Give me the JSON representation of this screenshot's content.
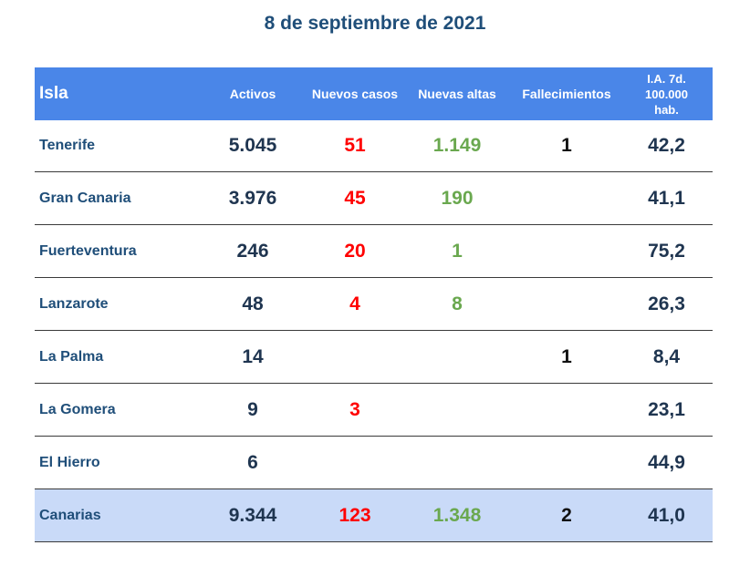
{
  "title": "8 de septiembre de 2021",
  "colors": {
    "header_bg": "#4a86e8",
    "total_row_bg": "#c9daf8",
    "name_text": "#1f4e79",
    "activos_text": "#1f3550",
    "nuevos_casos_text": "#ff0000",
    "nuevas_altas_text": "#6aa84f"
  },
  "chart_data": {
    "type": "table",
    "title": "8 de septiembre de 2021",
    "columns": [
      "Isla",
      "Activos",
      "Nuevos casos",
      "Nuevas altas",
      "Fallecimientos",
      [
        "I.A. 7d.",
        "100.000",
        "hab."
      ]
    ],
    "rows": [
      [
        "Tenerife",
        "5.045",
        "51",
        "1.149",
        "1",
        "42,2"
      ],
      [
        "Gran Canaria",
        "3.976",
        "45",
        "190",
        "",
        "41,1"
      ],
      [
        "Fuerteventura",
        "246",
        "20",
        "1",
        "",
        "75,2"
      ],
      [
        "Lanzarote",
        "48",
        "4",
        "8",
        "",
        "26,3"
      ],
      [
        "La Palma",
        "14",
        "",
        "",
        "1",
        "8,4"
      ],
      [
        "La Gomera",
        "9",
        "3",
        "",
        "",
        "23,1"
      ],
      [
        "El Hierro",
        "6",
        "",
        "",
        "",
        "44,9"
      ]
    ],
    "total": [
      "Canarias",
      "9.344",
      "123",
      "1.348",
      "2",
      "41,0"
    ]
  }
}
